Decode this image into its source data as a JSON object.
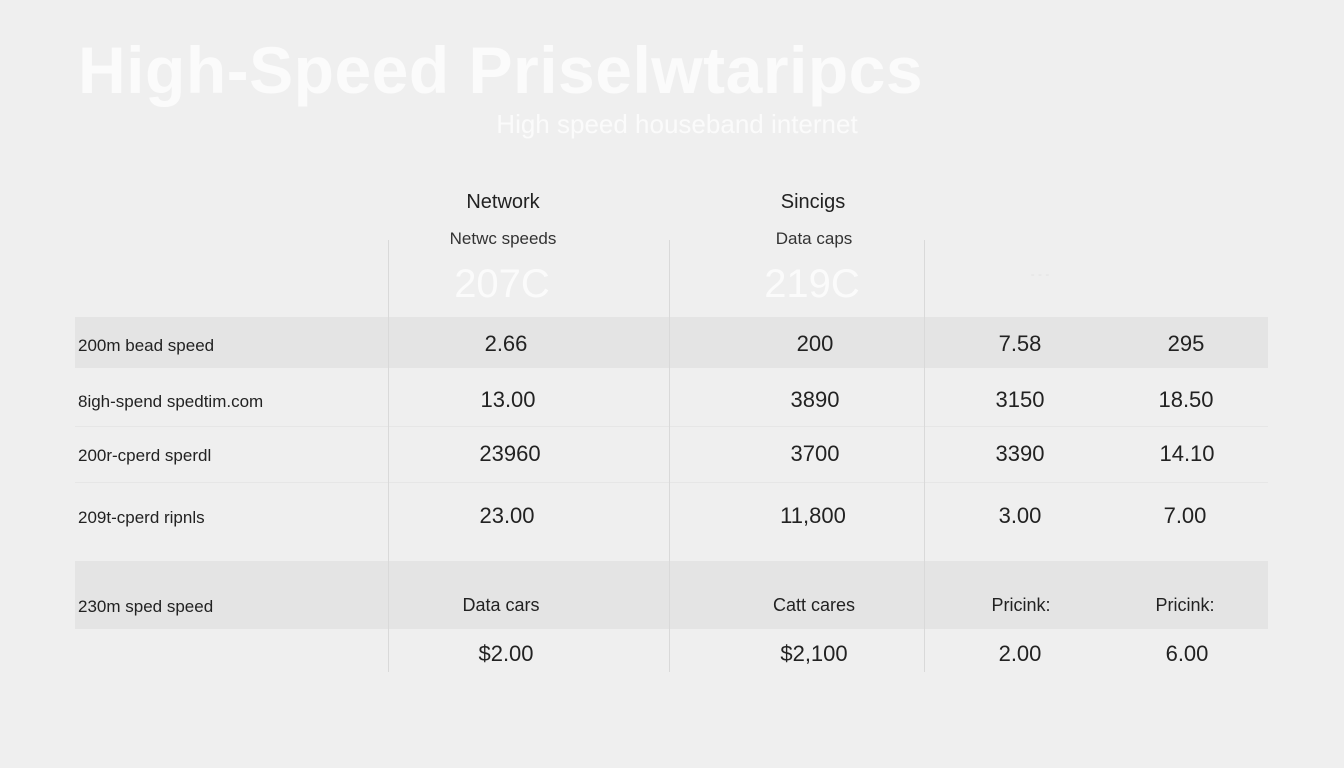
{
  "page": {
    "title": "High-Speed Priselwtaripcs",
    "subtitle": "High speed houseband internet"
  },
  "columns": [
    {
      "header": "Network",
      "subheader": "Netwc speeds",
      "big": "207C"
    },
    {
      "header": "Sincigs",
      "subheader": "Data caps",
      "big": "219C"
    },
    {
      "header": "",
      "subheader": "",
      "big": "- - -"
    },
    {
      "header": "",
      "subheader": "",
      "big": ""
    }
  ],
  "rows": [
    {
      "label": "200m bead speed",
      "values": [
        "2.66",
        "200",
        "7.58",
        "295"
      ]
    },
    {
      "label": "8igh-spend spedtim.com",
      "values": [
        "13.00",
        "3890",
        "3150",
        "18.50"
      ]
    },
    {
      "label": "200r-cperd sperdl",
      "values": [
        "23960",
        "3700",
        "3390",
        "14.10"
      ]
    },
    {
      "label": "209t-cperd ripnls",
      "values": [
        "23.00",
        "11,800",
        "3.00",
        "7.00"
      ]
    }
  ],
  "footer_row": {
    "label": "230m sped speed",
    "values": [
      "Data cars",
      "Catt cares",
      "Pricink:",
      "Pricink:"
    ]
  },
  "price_row": {
    "values": [
      "$2.00",
      "$2,100",
      "2.00",
      "6.00"
    ]
  }
}
